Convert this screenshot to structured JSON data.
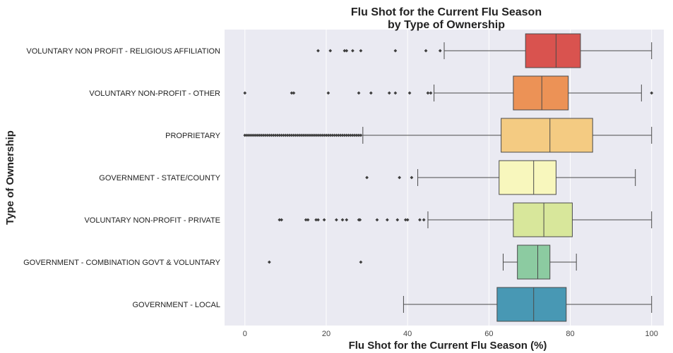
{
  "chart_data": {
    "type": "box",
    "orientation": "horizontal",
    "title": [
      "Flu Shot for the Current Flu Season",
      "by Type of Ownership"
    ],
    "xlabel": "Flu Shot for the Current Flu Season (%)",
    "ylabel": "Type of Ownership",
    "xlim": [
      -5,
      103
    ],
    "xticks": [
      0,
      20,
      40,
      60,
      80,
      100
    ],
    "grid": true,
    "categories": [
      {
        "name": "VOLUNTARY NON PROFIT - RELIGIOUS AFFILIATION",
        "color": "#d9534f",
        "whisker_low": 49,
        "q1": 69,
        "median": 76.5,
        "q3": 82.5,
        "whisker_high": 100,
        "outliers": [
          18,
          21,
          24.5,
          25,
          26.5,
          28.5,
          37,
          44.5,
          48
        ]
      },
      {
        "name": "VOLUNTARY NON-PROFIT - OTHER",
        "color": "#ec9256",
        "whisker_low": 46.5,
        "q1": 66,
        "median": 73,
        "q3": 79.5,
        "whisker_high": 97.5,
        "outliers": [
          0,
          11.5,
          12,
          20.5,
          28,
          31,
          35.5,
          37,
          40.5,
          45,
          45.7,
          100
        ]
      },
      {
        "name": "PROPRIETARY",
        "color": "#f4cb82",
        "whisker_low": 29,
        "q1": 63,
        "median": 75,
        "q3": 85.5,
        "whisker_high": 100,
        "outliers": [
          0,
          0.5,
          1,
          1.5,
          2,
          2.5,
          3,
          3.5,
          4,
          4.5,
          5,
          5.5,
          6,
          6.5,
          7,
          7.5,
          8,
          8.5,
          9,
          9.5,
          10,
          10.5,
          11,
          11.5,
          12,
          12.5,
          13,
          13.5,
          14,
          14.5,
          15,
          15.5,
          16,
          16.5,
          17,
          17.5,
          18,
          18.5,
          19,
          19.5,
          20,
          20.5,
          21,
          21.5,
          22,
          22.5,
          23,
          23.5,
          24,
          24.5,
          25,
          25.5,
          26,
          26.5,
          27,
          27.5,
          28,
          28.5
        ]
      },
      {
        "name": "GOVERNMENT - STATE/COUNTY",
        "color": "#f8f7bd",
        "whisker_low": 42.5,
        "q1": 62.5,
        "median": 71,
        "q3": 76.5,
        "whisker_high": 96,
        "outliers": [
          30,
          38,
          41
        ]
      },
      {
        "name": "VOLUNTARY NON-PROFIT - PRIVATE",
        "color": "#d8e79b",
        "whisker_low": 45,
        "q1": 66,
        "median": 73.5,
        "q3": 80.5,
        "whisker_high": 100,
        "outliers": [
          8.5,
          9,
          15,
          15.5,
          17.5,
          18,
          19.5,
          22.5,
          24,
          25,
          28,
          28.3,
          32.5,
          35,
          37.5,
          39.5,
          40,
          43,
          44
        ]
      },
      {
        "name": "GOVERNMENT - COMBINATION GOVT & VOLUNTARY",
        "color": "#8ccba1",
        "whisker_low": 63.5,
        "q1": 67,
        "median": 72,
        "q3": 75,
        "whisker_high": 81.5,
        "outliers": [
          6,
          28.5
        ]
      },
      {
        "name": "GOVERNMENT - LOCAL",
        "color": "#4898b4",
        "whisker_low": 39,
        "q1": 62,
        "median": 71,
        "q3": 79,
        "whisker_high": 100,
        "outliers": []
      }
    ]
  }
}
